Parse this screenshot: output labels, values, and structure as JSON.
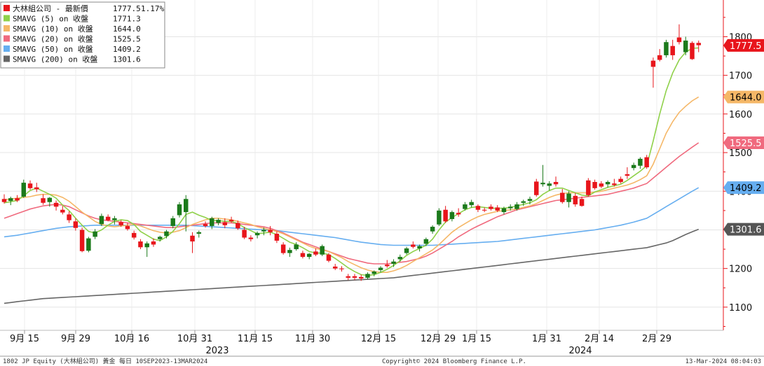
{
  "chart_data": {
    "type": "candlestick",
    "ylim": [
      1040,
      1895
    ],
    "y_ticks": [
      "1100",
      "1200",
      "1300",
      "1400",
      "1500",
      "1600",
      "1700",
      "1800"
    ],
    "x_ticks": [
      "9月 15",
      "9月 29",
      "10月 16",
      "10月 31",
      "11月 15",
      "11月 30",
      "12月 15",
      "12月 29",
      "1月 15",
      "1月 31",
      "2月 14",
      "2月 29"
    ],
    "year_labels": [
      "2023",
      "2024"
    ],
    "grid": true,
    "legend_position": "top-left",
    "candle_colors": {
      "up": "#1b7a1b",
      "down": "#e8151b"
    },
    "legend": [
      {
        "name": "大林組公司 - 最新價",
        "value": "1777.5",
        "extra": "1.17%",
        "color": "#e8151b"
      },
      {
        "name": "SMAVG (5)  on 收盤",
        "value": "1771.3",
        "color": "#8fd14a"
      },
      {
        "name": "SMAVG (10)  on 收盤",
        "value": "1644.0",
        "color": "#f5b767"
      },
      {
        "name": "SMAVG (20)  on 收盤",
        "value": "1525.5",
        "color": "#f06a7e"
      },
      {
        "name": "SMAVG (50)  on 收盤",
        "value": "1409.2",
        "color": "#66aef0"
      },
      {
        "name": "SMAVG (200)  on 收盤",
        "value": "1301.6",
        "color": "#666666"
      }
    ],
    "last_value_tags": [
      {
        "value": "1777.5",
        "color": "#e8151b",
        "text_color": "#ffffff"
      },
      {
        "value": "1644.0",
        "color": "#f5b767",
        "text_color": "#000000"
      },
      {
        "value": "1525.5",
        "color": "#f06a7e",
        "text_color": "#ffffff"
      },
      {
        "value": "1409.2",
        "color": "#66aef0",
        "text_color": "#000000"
      },
      {
        "value": "1301.6",
        "color": "#555555",
        "text_color": "#ffffff"
      }
    ],
    "candles": [
      {
        "o": 1380,
        "h": 1392,
        "l": 1368,
        "c": 1372
      },
      {
        "o": 1375,
        "h": 1386,
        "l": 1364,
        "c": 1382
      },
      {
        "o": 1382,
        "h": 1390,
        "l": 1372,
        "c": 1376
      },
      {
        "o": 1386,
        "h": 1430,
        "l": 1383,
        "c": 1422
      },
      {
        "o": 1420,
        "h": 1428,
        "l": 1404,
        "c": 1408
      },
      {
        "o": 1410,
        "h": 1422,
        "l": 1398,
        "c": 1405
      },
      {
        "o": 1382,
        "h": 1392,
        "l": 1365,
        "c": 1370
      },
      {
        "o": 1372,
        "h": 1385,
        "l": 1360,
        "c": 1383
      },
      {
        "o": 1370,
        "h": 1376,
        "l": 1350,
        "c": 1360
      },
      {
        "o": 1352,
        "h": 1362,
        "l": 1340,
        "c": 1345
      },
      {
        "o": 1340,
        "h": 1348,
        "l": 1318,
        "c": 1325
      },
      {
        "o": 1322,
        "h": 1330,
        "l": 1298,
        "c": 1305
      },
      {
        "o": 1300,
        "h": 1306,
        "l": 1242,
        "c": 1245
      },
      {
        "o": 1246,
        "h": 1282,
        "l": 1242,
        "c": 1278
      },
      {
        "o": 1282,
        "h": 1302,
        "l": 1276,
        "c": 1296
      },
      {
        "o": 1315,
        "h": 1342,
        "l": 1310,
        "c": 1336
      },
      {
        "o": 1334,
        "h": 1340,
        "l": 1322,
        "c": 1325
      },
      {
        "o": 1325,
        "h": 1336,
        "l": 1314,
        "c": 1330
      },
      {
        "o": 1320,
        "h": 1325,
        "l": 1308,
        "c": 1312
      },
      {
        "o": 1310,
        "h": 1318,
        "l": 1298,
        "c": 1302
      },
      {
        "o": 1292,
        "h": 1298,
        "l": 1275,
        "c": 1280
      },
      {
        "o": 1270,
        "h": 1276,
        "l": 1250,
        "c": 1255
      },
      {
        "o": 1255,
        "h": 1270,
        "l": 1230,
        "c": 1265
      },
      {
        "o": 1270,
        "h": 1278,
        "l": 1256,
        "c": 1262
      },
      {
        "o": 1276,
        "h": 1285,
        "l": 1270,
        "c": 1282
      },
      {
        "o": 1284,
        "h": 1300,
        "l": 1278,
        "c": 1296
      },
      {
        "o": 1310,
        "h": 1336,
        "l": 1304,
        "c": 1330
      },
      {
        "o": 1338,
        "h": 1372,
        "l": 1332,
        "c": 1366
      },
      {
        "o": 1346,
        "h": 1390,
        "l": 1296,
        "c": 1380
      },
      {
        "o": 1285,
        "h": 1294,
        "l": 1240,
        "c": 1270
      },
      {
        "o": 1290,
        "h": 1298,
        "l": 1280,
        "c": 1294
      },
      {
        "o": 1315,
        "h": 1322,
        "l": 1306,
        "c": 1310
      },
      {
        "o": 1310,
        "h": 1334,
        "l": 1302,
        "c": 1330
      },
      {
        "o": 1318,
        "h": 1330,
        "l": 1312,
        "c": 1326
      },
      {
        "o": 1320,
        "h": 1330,
        "l": 1304,
        "c": 1312
      },
      {
        "o": 1326,
        "h": 1334,
        "l": 1318,
        "c": 1322
      },
      {
        "o": 1318,
        "h": 1324,
        "l": 1300,
        "c": 1304
      },
      {
        "o": 1300,
        "h": 1308,
        "l": 1276,
        "c": 1280
      },
      {
        "o": 1280,
        "h": 1286,
        "l": 1270,
        "c": 1276
      },
      {
        "o": 1286,
        "h": 1296,
        "l": 1278,
        "c": 1292
      },
      {
        "o": 1296,
        "h": 1306,
        "l": 1286,
        "c": 1300
      },
      {
        "o": 1300,
        "h": 1310,
        "l": 1286,
        "c": 1294
      },
      {
        "o": 1290,
        "h": 1296,
        "l": 1266,
        "c": 1272
      },
      {
        "o": 1262,
        "h": 1268,
        "l": 1236,
        "c": 1240
      },
      {
        "o": 1240,
        "h": 1254,
        "l": 1230,
        "c": 1248
      },
      {
        "o": 1250,
        "h": 1268,
        "l": 1246,
        "c": 1262
      },
      {
        "o": 1240,
        "h": 1246,
        "l": 1226,
        "c": 1230
      },
      {
        "o": 1230,
        "h": 1240,
        "l": 1224,
        "c": 1238
      },
      {
        "o": 1244,
        "h": 1252,
        "l": 1232,
        "c": 1236
      },
      {
        "o": 1236,
        "h": 1262,
        "l": 1232,
        "c": 1258
      },
      {
        "o": 1236,
        "h": 1240,
        "l": 1216,
        "c": 1220
      },
      {
        "o": 1205,
        "h": 1212,
        "l": 1196,
        "c": 1200
      },
      {
        "o": 1200,
        "h": 1206,
        "l": 1192,
        "c": 1198
      },
      {
        "o": 1180,
        "h": 1186,
        "l": 1170,
        "c": 1176
      },
      {
        "o": 1180,
        "h": 1186,
        "l": 1170,
        "c": 1176
      },
      {
        "o": 1178,
        "h": 1184,
        "l": 1168,
        "c": 1174
      },
      {
        "o": 1176,
        "h": 1190,
        "l": 1172,
        "c": 1186
      },
      {
        "o": 1186,
        "h": 1195,
        "l": 1180,
        "c": 1192
      },
      {
        "o": 1196,
        "h": 1206,
        "l": 1190,
        "c": 1202
      },
      {
        "o": 1210,
        "h": 1222,
        "l": 1202,
        "c": 1206
      },
      {
        "o": 1212,
        "h": 1224,
        "l": 1204,
        "c": 1218
      },
      {
        "o": 1224,
        "h": 1236,
        "l": 1218,
        "c": 1230
      },
      {
        "o": 1240,
        "h": 1256,
        "l": 1236,
        "c": 1252
      },
      {
        "o": 1262,
        "h": 1270,
        "l": 1252,
        "c": 1256
      },
      {
        "o": 1252,
        "h": 1262,
        "l": 1244,
        "c": 1258
      },
      {
        "o": 1264,
        "h": 1280,
        "l": 1258,
        "c": 1276
      },
      {
        "o": 1296,
        "h": 1312,
        "l": 1290,
        "c": 1308
      },
      {
        "o": 1314,
        "h": 1356,
        "l": 1310,
        "c": 1350
      },
      {
        "o": 1352,
        "h": 1362,
        "l": 1318,
        "c": 1322
      },
      {
        "o": 1328,
        "h": 1350,
        "l": 1322,
        "c": 1346
      },
      {
        "o": 1344,
        "h": 1356,
        "l": 1334,
        "c": 1340
      },
      {
        "o": 1354,
        "h": 1372,
        "l": 1350,
        "c": 1366
      },
      {
        "o": 1364,
        "h": 1378,
        "l": 1358,
        "c": 1372
      },
      {
        "o": 1362,
        "h": 1366,
        "l": 1346,
        "c": 1352
      },
      {
        "o": 1352,
        "h": 1358,
        "l": 1346,
        "c": 1350
      },
      {
        "o": 1360,
        "h": 1366,
        "l": 1350,
        "c": 1354
      },
      {
        "o": 1358,
        "h": 1364,
        "l": 1346,
        "c": 1350
      },
      {
        "o": 1346,
        "h": 1360,
        "l": 1340,
        "c": 1356
      },
      {
        "o": 1356,
        "h": 1366,
        "l": 1350,
        "c": 1360
      },
      {
        "o": 1354,
        "h": 1372,
        "l": 1350,
        "c": 1366
      },
      {
        "o": 1370,
        "h": 1378,
        "l": 1362,
        "c": 1374
      },
      {
        "o": 1375,
        "h": 1386,
        "l": 1366,
        "c": 1380
      },
      {
        "o": 1425,
        "h": 1432,
        "l": 1386,
        "c": 1390
      },
      {
        "o": 1418,
        "h": 1468,
        "l": 1412,
        "c": 1422
      },
      {
        "o": 1414,
        "h": 1426,
        "l": 1402,
        "c": 1420
      },
      {
        "o": 1424,
        "h": 1438,
        "l": 1412,
        "c": 1418
      },
      {
        "o": 1396,
        "h": 1406,
        "l": 1368,
        "c": 1372
      },
      {
        "o": 1372,
        "h": 1400,
        "l": 1358,
        "c": 1394
      },
      {
        "o": 1388,
        "h": 1396,
        "l": 1360,
        "c": 1366
      },
      {
        "o": 1380,
        "h": 1386,
        "l": 1360,
        "c": 1362
      },
      {
        "o": 1428,
        "h": 1434,
        "l": 1386,
        "c": 1390
      },
      {
        "o": 1424,
        "h": 1430,
        "l": 1404,
        "c": 1408
      },
      {
        "o": 1420,
        "h": 1426,
        "l": 1408,
        "c": 1412
      },
      {
        "o": 1418,
        "h": 1428,
        "l": 1410,
        "c": 1424
      },
      {
        "o": 1420,
        "h": 1432,
        "l": 1412,
        "c": 1416
      },
      {
        "o": 1432,
        "h": 1438,
        "l": 1420,
        "c": 1424
      },
      {
        "o": 1444,
        "h": 1462,
        "l": 1432,
        "c": 1440
      },
      {
        "o": 1460,
        "h": 1474,
        "l": 1454,
        "c": 1468
      },
      {
        "o": 1466,
        "h": 1488,
        "l": 1458,
        "c": 1484
      },
      {
        "o": 1488,
        "h": 1494,
        "l": 1458,
        "c": 1462
      },
      {
        "o": 1738,
        "h": 1746,
        "l": 1668,
        "c": 1722
      },
      {
        "o": 1752,
        "h": 1768,
        "l": 1736,
        "c": 1740
      },
      {
        "o": 1752,
        "h": 1792,
        "l": 1746,
        "c": 1786
      },
      {
        "o": 1776,
        "h": 1792,
        "l": 1740,
        "c": 1752
      },
      {
        "o": 1798,
        "h": 1832,
        "l": 1780,
        "c": 1786
      },
      {
        "o": 1760,
        "h": 1800,
        "l": 1752,
        "c": 1790
      },
      {
        "o": 1784,
        "h": 1788,
        "l": 1740,
        "c": 1742
      },
      {
        "o": 1784,
        "h": 1790,
        "l": 1760,
        "c": 1778
      }
    ],
    "sma5": [
      1370,
      1373,
      1376,
      1388,
      1402,
      1408,
      1400,
      1392,
      1382,
      1364,
      1350,
      1330,
      1312,
      1296,
      1292,
      1300,
      1312,
      1322,
      1326,
      1324,
      1314,
      1296,
      1286,
      1276,
      1272,
      1282,
      1296,
      1316,
      1340,
      1346,
      1338,
      1332,
      1324,
      1324,
      1322,
      1322,
      1316,
      1306,
      1298,
      1290,
      1292,
      1294,
      1288,
      1278,
      1268,
      1262,
      1254,
      1244,
      1240,
      1240,
      1236,
      1226,
      1214,
      1202,
      1192,
      1184,
      1182,
      1184,
      1190,
      1198,
      1208,
      1220,
      1234,
      1244,
      1252,
      1260,
      1276,
      1300,
      1320,
      1332,
      1342,
      1352,
      1358,
      1360,
      1358,
      1356,
      1356,
      1356,
      1358,
      1362,
      1366,
      1370,
      1378,
      1392,
      1402,
      1408,
      1408,
      1402,
      1396,
      1390,
      1388,
      1398,
      1404,
      1410,
      1414,
      1418,
      1428,
      1440,
      1452,
      1466,
      1530,
      1600,
      1660,
      1706,
      1740,
      1760,
      1770,
      1771
    ],
    "sma10": [
      1378,
      1380,
      1382,
      1384,
      1386,
      1390,
      1392,
      1392,
      1390,
      1384,
      1374,
      1360,
      1346,
      1334,
      1322,
      1314,
      1310,
      1308,
      1310,
      1312,
      1314,
      1310,
      1304,
      1298,
      1294,
      1292,
      1294,
      1298,
      1306,
      1314,
      1320,
      1326,
      1330,
      1330,
      1328,
      1326,
      1322,
      1318,
      1314,
      1308,
      1304,
      1300,
      1296,
      1290,
      1282,
      1274,
      1266,
      1258,
      1252,
      1248,
      1244,
      1236,
      1228,
      1218,
      1210,
      1202,
      1196,
      1192,
      1190,
      1190,
      1194,
      1200,
      1208,
      1218,
      1228,
      1238,
      1248,
      1262,
      1278,
      1294,
      1306,
      1316,
      1326,
      1334,
      1340,
      1344,
      1348,
      1350,
      1352,
      1354,
      1358,
      1362,
      1368,
      1376,
      1384,
      1390,
      1394,
      1396,
      1396,
      1396,
      1396,
      1398,
      1400,
      1404,
      1408,
      1412,
      1416,
      1422,
      1430,
      1440,
      1470,
      1510,
      1550,
      1580,
      1604,
      1620,
      1634,
      1644
    ],
    "sma20": [
      1330,
      1336,
      1342,
      1348,
      1354,
      1358,
      1362,
      1364,
      1366,
      1364,
      1360,
      1352,
      1344,
      1336,
      1330,
      1326,
      1324,
      1322,
      1320,
      1318,
      1316,
      1314,
      1312,
      1310,
      1308,
      1306,
      1306,
      1308,
      1310,
      1312,
      1314,
      1316,
      1318,
      1318,
      1318,
      1318,
      1316,
      1314,
      1312,
      1310,
      1308,
      1304,
      1298,
      1292,
      1284,
      1276,
      1268,
      1262,
      1256,
      1250,
      1244,
      1238,
      1232,
      1226,
      1222,
      1218,
      1214,
      1212,
      1212,
      1212,
      1214,
      1216,
      1218,
      1222,
      1226,
      1232,
      1240,
      1250,
      1260,
      1270,
      1282,
      1292,
      1302,
      1310,
      1318,
      1326,
      1334,
      1340,
      1346,
      1352,
      1356,
      1360,
      1364,
      1368,
      1372,
      1376,
      1378,
      1380,
      1382,
      1384,
      1386,
      1388,
      1390,
      1392,
      1396,
      1400,
      1404,
      1408,
      1414,
      1420,
      1434,
      1448,
      1462,
      1476,
      1490,
      1502,
      1514,
      1525.5
    ],
    "sma50": [
      1282,
      1284,
      1286,
      1289,
      1292,
      1295,
      1298,
      1301,
      1304,
      1306,
      1308,
      1309,
      1310,
      1311,
      1312,
      1312,
      1312,
      1312,
      1312,
      1312,
      1312,
      1312,
      1312,
      1312,
      1312,
      1312,
      1312,
      1312,
      1312,
      1311,
      1310,
      1309,
      1308,
      1307,
      1306,
      1305,
      1304,
      1303,
      1302,
      1301,
      1300,
      1299,
      1298,
      1296,
      1294,
      1292,
      1290,
      1288,
      1286,
      1284,
      1282,
      1280,
      1277,
      1274,
      1271,
      1268,
      1266,
      1264,
      1262,
      1261,
      1260,
      1260,
      1260,
      1260,
      1260,
      1260,
      1260,
      1261,
      1262,
      1263,
      1264,
      1265,
      1266,
      1267,
      1268,
      1269,
      1270,
      1272,
      1274,
      1276,
      1278,
      1280,
      1282,
      1284,
      1286,
      1288,
      1290,
      1292,
      1294,
      1296,
      1298,
      1300,
      1303,
      1306,
      1309,
      1312,
      1316,
      1320,
      1325,
      1330,
      1340,
      1350,
      1360,
      1370,
      1380,
      1390,
      1400,
      1409.2
    ],
    "sma200": [
      1110,
      1112,
      1114,
      1116,
      1118,
      1120,
      1122,
      1123,
      1124,
      1125,
      1126,
      1127,
      1128,
      1129,
      1130,
      1131,
      1132,
      1133,
      1134,
      1135,
      1136,
      1137,
      1138,
      1139,
      1140,
      1141,
      1142,
      1143,
      1144,
      1145,
      1146,
      1147,
      1148,
      1149,
      1150,
      1151,
      1152,
      1153,
      1154,
      1155,
      1156,
      1157,
      1158,
      1159,
      1160,
      1161,
      1162,
      1163,
      1164,
      1165,
      1166,
      1167,
      1168,
      1169,
      1170,
      1171,
      1172,
      1173,
      1174,
      1175,
      1176,
      1178,
      1180,
      1182,
      1184,
      1186,
      1188,
      1190,
      1192,
      1194,
      1196,
      1198,
      1200,
      1202,
      1204,
      1206,
      1208,
      1210,
      1212,
      1214,
      1216,
      1218,
      1220,
      1222,
      1224,
      1226,
      1228,
      1230,
      1232,
      1234,
      1236,
      1238,
      1240,
      1242,
      1244,
      1246,
      1248,
      1250,
      1252,
      1254,
      1258,
      1262,
      1266,
      1272,
      1280,
      1288,
      1295,
      1301.6
    ]
  },
  "footer": {
    "left": "1802 JP Equity (大林組公司) 黃金  每日 10SEP2023-13MAR2024",
    "center": "Copyright© 2024 Bloomberg Finance L.P.",
    "right": "13-Mar-2024 08:04:03"
  }
}
